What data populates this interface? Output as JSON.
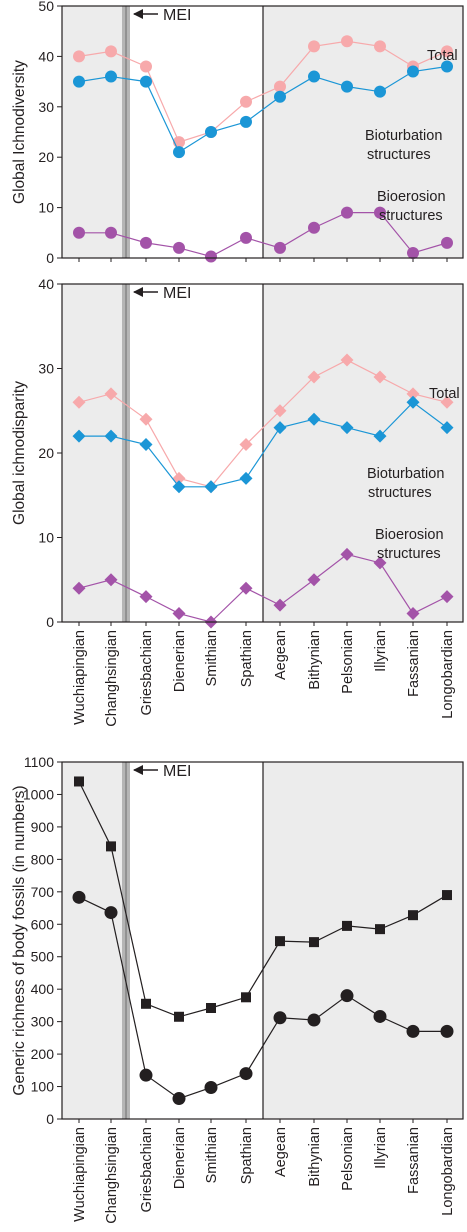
{
  "chart_data": [
    {
      "type": "line",
      "ylabel": "Global Ichnodiversity",
      "ylim": [
        0,
        50
      ],
      "yticks": [
        0,
        10,
        20,
        30,
        40,
        50
      ],
      "marker": "circle",
      "categories": [
        "Wuchiapingian",
        "Changhsingian",
        "Griesbachian",
        "Dienerian",
        "Smithian",
        "Spathian",
        "Aegean",
        "Bithynian",
        "Pelsonian",
        "Illyrian",
        "Fassanian",
        "Longobardian"
      ],
      "mei_label": "MEI",
      "series": [
        {
          "name": "Total",
          "color": "#f7a9ab",
          "values": [
            40,
            41,
            38,
            23,
            25,
            31,
            34,
            42,
            43,
            42,
            38,
            41
          ]
        },
        {
          "name": "Bioturbation structures",
          "color": "#1b96d6",
          "values": [
            35,
            36,
            35,
            21,
            25,
            27,
            32,
            36,
            34,
            33,
            37,
            38
          ]
        },
        {
          "name": "Bioerosion structures",
          "color": "#a353a8",
          "values": [
            5,
            5,
            3,
            2,
            0.3,
            4,
            2,
            6,
            9,
            9,
            1,
            3
          ]
        }
      ],
      "annotations": {
        "total": "Total",
        "bioturbation": [
          "Bioturbation",
          "structures"
        ],
        "bioerosion": [
          "Bioerosion",
          "structures"
        ]
      }
    },
    {
      "type": "line",
      "ylabel": "Global  ichnodisparity",
      "ylim": [
        0,
        40
      ],
      "yticks": [
        0,
        10,
        20,
        30,
        40
      ],
      "marker": "diamond",
      "categories": [
        "Wuchiapingian",
        "Changhsingian",
        "Griesbachian",
        "Dienerian",
        "Smithian",
        "Spathian",
        "Aegean",
        "Bithynian",
        "Pelsonian",
        "Illyrian",
        "Fassanian",
        "Longobardian"
      ],
      "mei_label": "MEI",
      "series": [
        {
          "name": "Total",
          "color": "#f7a9ab",
          "values": [
            26,
            27,
            24,
            17,
            16,
            21,
            25,
            29,
            31,
            29,
            27,
            26
          ]
        },
        {
          "name": "Bioturbation structures",
          "color": "#1b96d6",
          "values": [
            22,
            22,
            21,
            16,
            16,
            17,
            23,
            24,
            23,
            22,
            26,
            23
          ]
        },
        {
          "name": "Bioerosion structures",
          "color": "#a353a8",
          "values": [
            4,
            5,
            3,
            1,
            0,
            4,
            2,
            5,
            8,
            7,
            1,
            3
          ]
        }
      ],
      "annotations": {
        "total": "Total",
        "bioturbation": [
          "Bioturbation",
          "structures"
        ],
        "bioerosion": [
          "Bioerosion",
          "structures"
        ]
      }
    },
    {
      "type": "line",
      "ylabel": "Generic richness of body fossils (in numbers)",
      "ylim": [
        0,
        1100
      ],
      "yticks": [
        0,
        100,
        200,
        300,
        400,
        500,
        600,
        700,
        800,
        900,
        1000,
        1100
      ],
      "categories": [
        "Wuchiapingian",
        "Changhsingian",
        "Griesbachian",
        "Dienerian",
        "Smithian",
        "Spathian",
        "Aegean",
        "Bithynian",
        "Pelsonian",
        "Illyrian",
        "Fassanian",
        "Longobardian"
      ],
      "mei_label": "MEI",
      "series": [
        {
          "marker": "square",
          "color": "#231f20",
          "values": [
            1040,
            840,
            355,
            315,
            342,
            375,
            548,
            545,
            595,
            585,
            628,
            690
          ]
        },
        {
          "marker": "circle",
          "color": "#231f20",
          "values": [
            683,
            636,
            135,
            63,
            97,
            140,
            312,
            305,
            380,
            316,
            270,
            270
          ]
        }
      ]
    }
  ]
}
